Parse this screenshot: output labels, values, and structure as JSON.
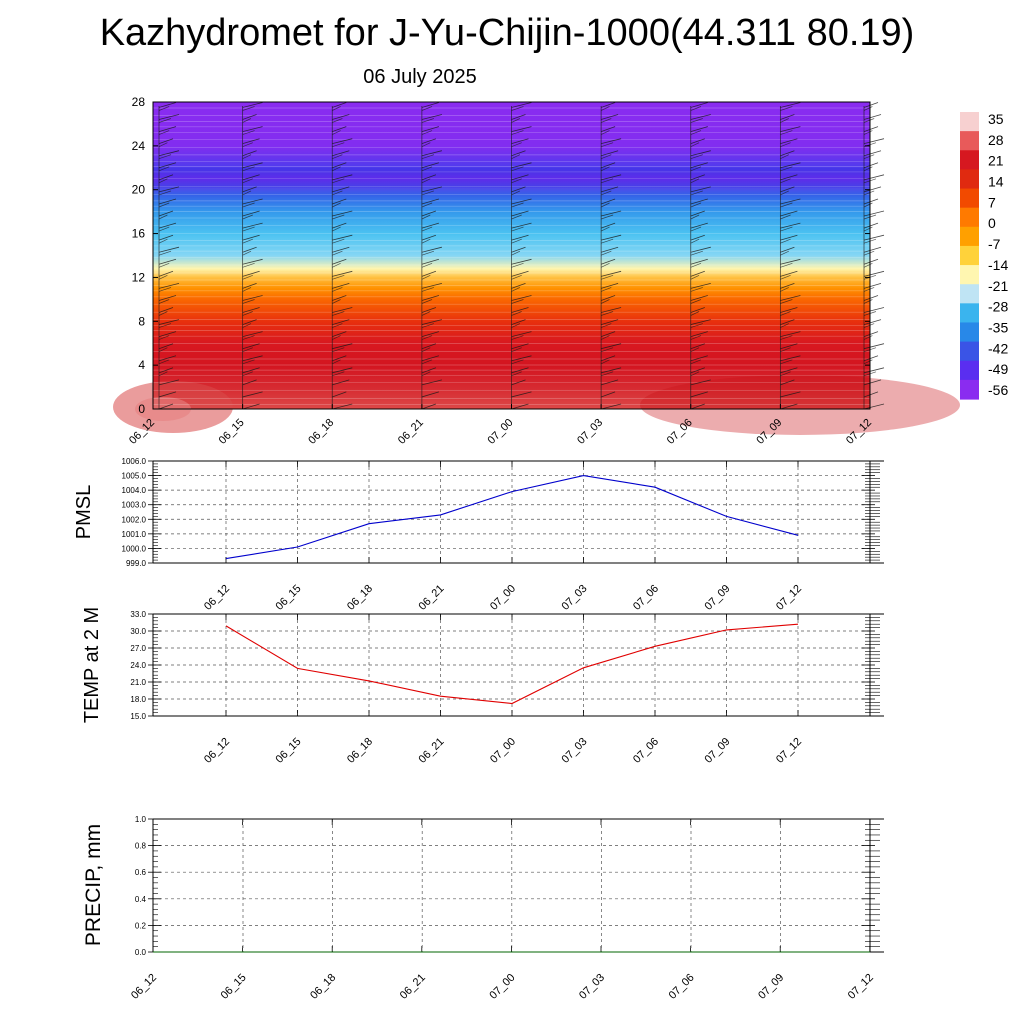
{
  "header": {
    "title": "Kazhydromet for J-Yu-Chijin-1000(44.311 80.19)",
    "date": "06 July 2025"
  },
  "chart_data": [
    {
      "type": "heatmap",
      "panel": "cross-section",
      "x_ticks": [
        "06_12",
        "06_15",
        "06_18",
        "06_21",
        "07_00",
        "07_03",
        "07_06",
        "07_09",
        "07_12"
      ],
      "y_ticks": [
        0,
        4,
        8,
        12,
        16,
        20,
        24,
        28
      ],
      "ylim": [
        0,
        28
      ],
      "temperature_profile": [
        {
          "y": 0,
          "value": 30
        },
        {
          "y": 2,
          "value": 27
        },
        {
          "y": 4,
          "value": 24
        },
        {
          "y": 6,
          "value": 20
        },
        {
          "y": 8,
          "value": 14
        },
        {
          "y": 10,
          "value": 7
        },
        {
          "y": 11,
          "value": 2
        },
        {
          "y": 12,
          "value": -5
        },
        {
          "y": 12.8,
          "value": -13
        },
        {
          "y": 14,
          "value": -22
        },
        {
          "y": 16,
          "value": -30
        },
        {
          "y": 18,
          "value": -38
        },
        {
          "y": 19.5,
          "value": -46
        },
        {
          "y": 21,
          "value": -55
        },
        {
          "y": 22,
          "value": -51
        },
        {
          "y": 24,
          "value": -58
        },
        {
          "y": 28,
          "value": -60
        }
      ],
      "wind_barbs": "yes",
      "colorbar": {
        "labels": [
          "35",
          "28",
          "21",
          "14",
          "7",
          "0",
          "-7",
          "-14",
          "-21",
          "-28",
          "-35",
          "-42",
          "-49",
          "-56"
        ],
        "colors": [
          "#f7d0d0",
          "#e85a5a",
          "#d61820",
          "#e02a10",
          "#f24a00",
          "#ff7a00",
          "#ffa000",
          "#ffd23a",
          "#fff6b0",
          "#bfe4f4",
          "#3ab4ee",
          "#2888e8",
          "#3a54e6",
          "#5a2ef0",
          "#8a2cf0"
        ]
      }
    },
    {
      "type": "line",
      "ylabel": "PMSL",
      "ylim": [
        999.0,
        1006.0
      ],
      "y_ticks": [
        "999.0",
        "1000.0",
        "1001.0",
        "1002.0",
        "1003.0",
        "1004.0",
        "1005.0",
        "1006.0"
      ],
      "categories": [
        "06_12",
        "06_15",
        "06_18",
        "06_21",
        "07_00",
        "07_03",
        "07_06",
        "07_09",
        "07_12"
      ],
      "values": [
        999.3,
        1000.1,
        1001.7,
        1002.3,
        1003.9,
        1005.0,
        1004.2,
        1002.2,
        1000.9
      ],
      "color": "#0000cc"
    },
    {
      "type": "line",
      "ylabel": "TEMP at 2 M",
      "ylim": [
        15.0,
        33.0
      ],
      "y_ticks": [
        "15.0",
        "18.0",
        "21.0",
        "24.0",
        "27.0",
        "30.0",
        "33.0"
      ],
      "categories": [
        "06_12",
        "06_15",
        "06_18",
        "06_21",
        "07_00",
        "07_03",
        "07_06",
        "07_09",
        "07_12"
      ],
      "values": [
        30.9,
        23.4,
        21.2,
        18.5,
        17.2,
        23.5,
        27.3,
        30.2,
        31.2
      ],
      "color": "#e00000"
    },
    {
      "type": "line",
      "ylabel": "PRECIP, mm",
      "ylim": [
        0.0,
        1.0
      ],
      "y_ticks": [
        "0.0",
        "0.2",
        "0.4",
        "0.6",
        "0.8",
        "1.0"
      ],
      "categories": [
        "06_12",
        "06_15",
        "06_18",
        "06_21",
        "07_00",
        "07_03",
        "07_06",
        "07_09",
        "07_12"
      ],
      "values": [
        0,
        0,
        0,
        0,
        0,
        0,
        0,
        0,
        0
      ],
      "color": "#006400"
    }
  ]
}
